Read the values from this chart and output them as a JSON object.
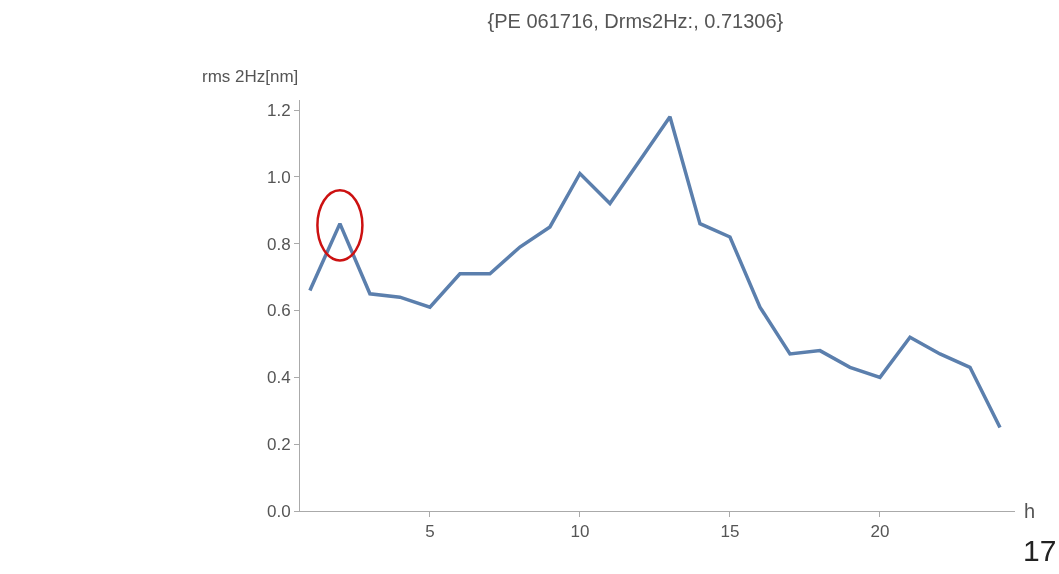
{
  "chart_data": {
    "type": "line",
    "title": "{PE 061716, Drms2Hz:, 0.71306}",
    "xlabel": "h",
    "ylabel": "rms 2Hz[nm]",
    "x": [
      1,
      2,
      3,
      4,
      5,
      6,
      7,
      8,
      9,
      10,
      11,
      12,
      13,
      14,
      15,
      16,
      17,
      18,
      19,
      20,
      21,
      22,
      23,
      24
    ],
    "series": [
      {
        "color": "#5b7fad",
        "values": [
          0.66,
          0.86,
          0.65,
          0.64,
          0.61,
          0.71,
          0.71,
          0.79,
          0.85,
          1.01,
          0.92,
          1.05,
          1.18,
          0.86,
          0.82,
          0.61,
          0.47,
          0.48,
          0.43,
          0.4,
          0.52,
          0.47,
          0.43,
          0.25
        ]
      }
    ],
    "xlim": [
      0.67,
      24.5
    ],
    "ylim": [
      0,
      1.23
    ],
    "xticks": [
      5,
      10,
      15,
      20
    ],
    "yticks": [
      {
        "value": 0,
        "label": "0.0"
      },
      {
        "value": 0.2,
        "label": "0.2"
      },
      {
        "value": 0.4,
        "label": "0.4"
      },
      {
        "value": 0.6,
        "label": "0.6"
      },
      {
        "value": 0.8,
        "label": "0.8"
      },
      {
        "value": 1.0,
        "label": "1.0"
      },
      {
        "value": 1.2,
        "label": "1.2"
      }
    ],
    "marker": "none",
    "line_style": "solid",
    "annotations": [
      "17"
    ]
  }
}
